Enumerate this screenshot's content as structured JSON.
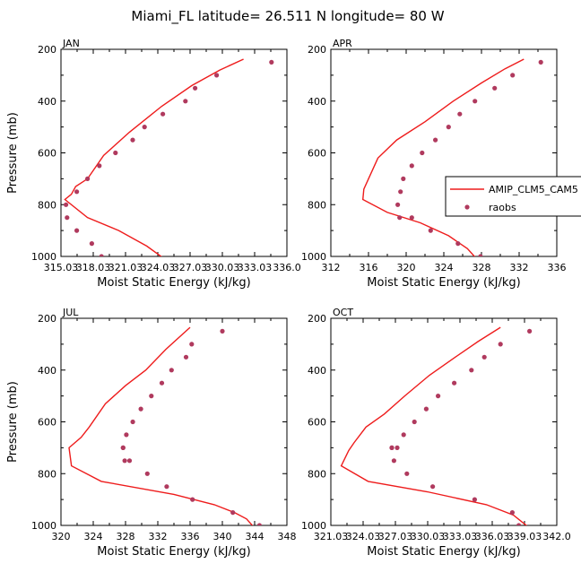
{
  "title": "Miami_FL  latitude= 26.511 N longitude= 80 W",
  "colors": {
    "model": "#ee1c1c",
    "obs": "#b03a5e",
    "axis": "#000000"
  },
  "legend": {
    "model": "AMIP_CLM5_CAM5",
    "obs": "raobs"
  },
  "chart_data": [
    {
      "type": "line",
      "label": "JAN",
      "xlabel": "Moist Static Energy (kJ/kg)",
      "ylabel": "Pressure (mb)",
      "xlim": [
        315.03,
        336.03
      ],
      "ylim": [
        1000,
        200
      ],
      "xticks": [
        "315.03",
        "318.03",
        "321.03",
        "324.03",
        "327.03",
        "330.03",
        "333.03",
        "336.0"
      ],
      "yticks": [
        "200",
        "400",
        "600",
        "800",
        "1000"
      ],
      "series": [
        {
          "name": "AMIP_CLM5_CAM5",
          "x": [
            332.0,
            329.8,
            327.2,
            324.4,
            321.4,
            319.0,
            317.5,
            316.4,
            316.0,
            315.4,
            317.5,
            320.4,
            323.0,
            324.5
          ],
          "y": [
            238,
            280,
            340,
            420,
            520,
            610,
            700,
            730,
            760,
            780,
            850,
            900,
            960,
            1005
          ]
        },
        {
          "name": "raobs",
          "x": [
            334.6,
            329.5,
            327.5,
            326.6,
            324.5,
            322.8,
            321.7,
            320.1,
            318.6,
            317.5,
            316.5,
            315.5,
            315.6,
            316.5,
            317.9,
            318.8
          ],
          "y": [
            250,
            300,
            350,
            400,
            450,
            500,
            550,
            600,
            650,
            700,
            750,
            800,
            850,
            900,
            950,
            1000
          ]
        }
      ]
    },
    {
      "type": "line",
      "label": "APR",
      "xlabel": "Moist Static Energy (kJ/kg)",
      "ylabel": "Pressure (mb)",
      "xlim": [
        312,
        336
      ],
      "ylim": [
        1000,
        200
      ],
      "xticks": [
        "312",
        "316",
        "320",
        "324",
        "328",
        "332",
        "336"
      ],
      "yticks": [
        "200",
        "400",
        "600",
        "800",
        "1000"
      ],
      "series": [
        {
          "name": "AMIP_CLM5_CAM5",
          "x": [
            332.5,
            330.5,
            328.0,
            325.0,
            322.0,
            319.0,
            317.0,
            316.0,
            315.5,
            315.4,
            318.0,
            321.5,
            324.5,
            326.5,
            327.5
          ],
          "y": [
            238,
            275,
            330,
            400,
            480,
            550,
            620,
            700,
            740,
            780,
            830,
            870,
            920,
            970,
            1010
          ]
        },
        {
          "name": "raobs",
          "x": [
            334.3,
            331.3,
            329.4,
            327.3,
            325.7,
            324.5,
            323.1,
            321.7,
            320.6,
            319.7,
            319.4,
            319.1,
            319.3,
            320.6,
            322.6,
            325.5,
            327.9
          ],
          "y": [
            250,
            300,
            350,
            400,
            450,
            500,
            550,
            600,
            650,
            700,
            750,
            800,
            850,
            850,
            900,
            950,
            1000
          ]
        }
      ]
    },
    {
      "type": "line",
      "label": "JUL",
      "xlabel": "Moist Static Energy (kJ/kg)",
      "ylabel": "Pressure (mb)",
      "xlim": [
        320,
        348
      ],
      "ylim": [
        1000,
        200
      ],
      "xticks": [
        "320",
        "324",
        "328",
        "332",
        "336",
        "340",
        "344",
        "348"
      ],
      "yticks": [
        "200",
        "400",
        "600",
        "800",
        "1000"
      ],
      "series": [
        {
          "name": "AMIP_CLM5_CAM5",
          "x": [
            336.0,
            333.0,
            330.5,
            328.0,
            325.5,
            323.5,
            322.5,
            321.0,
            321.3,
            325.0,
            334.0,
            339.0,
            341.5,
            343.0,
            344.0
          ],
          "y": [
            235,
            320,
            400,
            460,
            530,
            620,
            660,
            700,
            770,
            830,
            880,
            920,
            950,
            975,
            1010
          ]
        },
        {
          "name": "raobs",
          "x": [
            340.0,
            336.2,
            335.5,
            333.7,
            332.5,
            331.2,
            329.9,
            328.9,
            328.1,
            327.7,
            327.7,
            327.9,
            328.5,
            330.7,
            333.1,
            336.3,
            341.3,
            344.6
          ],
          "y": [
            250,
            300,
            350,
            400,
            450,
            500,
            550,
            600,
            650,
            700,
            700,
            750,
            750,
            800,
            850,
            900,
            950,
            1000
          ]
        }
      ]
    },
    {
      "type": "line",
      "label": "OCT",
      "xlabel": "Moist Static Energy (kJ/kg)",
      "ylabel": "Pressure (mb)",
      "xlim": [
        321.03,
        342.03
      ],
      "ylim": [
        1000,
        200
      ],
      "xticks": [
        "321.03",
        "324.03",
        "327.03",
        "330.03",
        "333.03",
        "336.03",
        "339.03",
        "342.0"
      ],
      "yticks": [
        "200",
        "400",
        "600",
        "800",
        "1000"
      ],
      "series": [
        {
          "name": "AMIP_CLM5_CAM5",
          "x": [
            336.8,
            334.7,
            332.6,
            330.2,
            327.9,
            326.0,
            324.3,
            323.2,
            322.7,
            322.0,
            324.5,
            330.0,
            335.5,
            338.0,
            339.5
          ],
          "y": [
            235,
            290,
            350,
            420,
            500,
            570,
            620,
            680,
            710,
            770,
            830,
            870,
            920,
            960,
            1010
          ]
        },
        {
          "name": "raobs",
          "x": [
            339.5,
            336.8,
            335.3,
            334.1,
            332.5,
            331.0,
            329.9,
            328.8,
            327.8,
            327.2,
            326.7,
            326.7,
            326.9,
            328.1,
            330.5,
            334.4,
            337.9,
            338.5
          ],
          "y": [
            250,
            300,
            350,
            400,
            450,
            500,
            550,
            600,
            650,
            700,
            700,
            700,
            750,
            800,
            850,
            900,
            950,
            1000
          ]
        }
      ]
    }
  ]
}
